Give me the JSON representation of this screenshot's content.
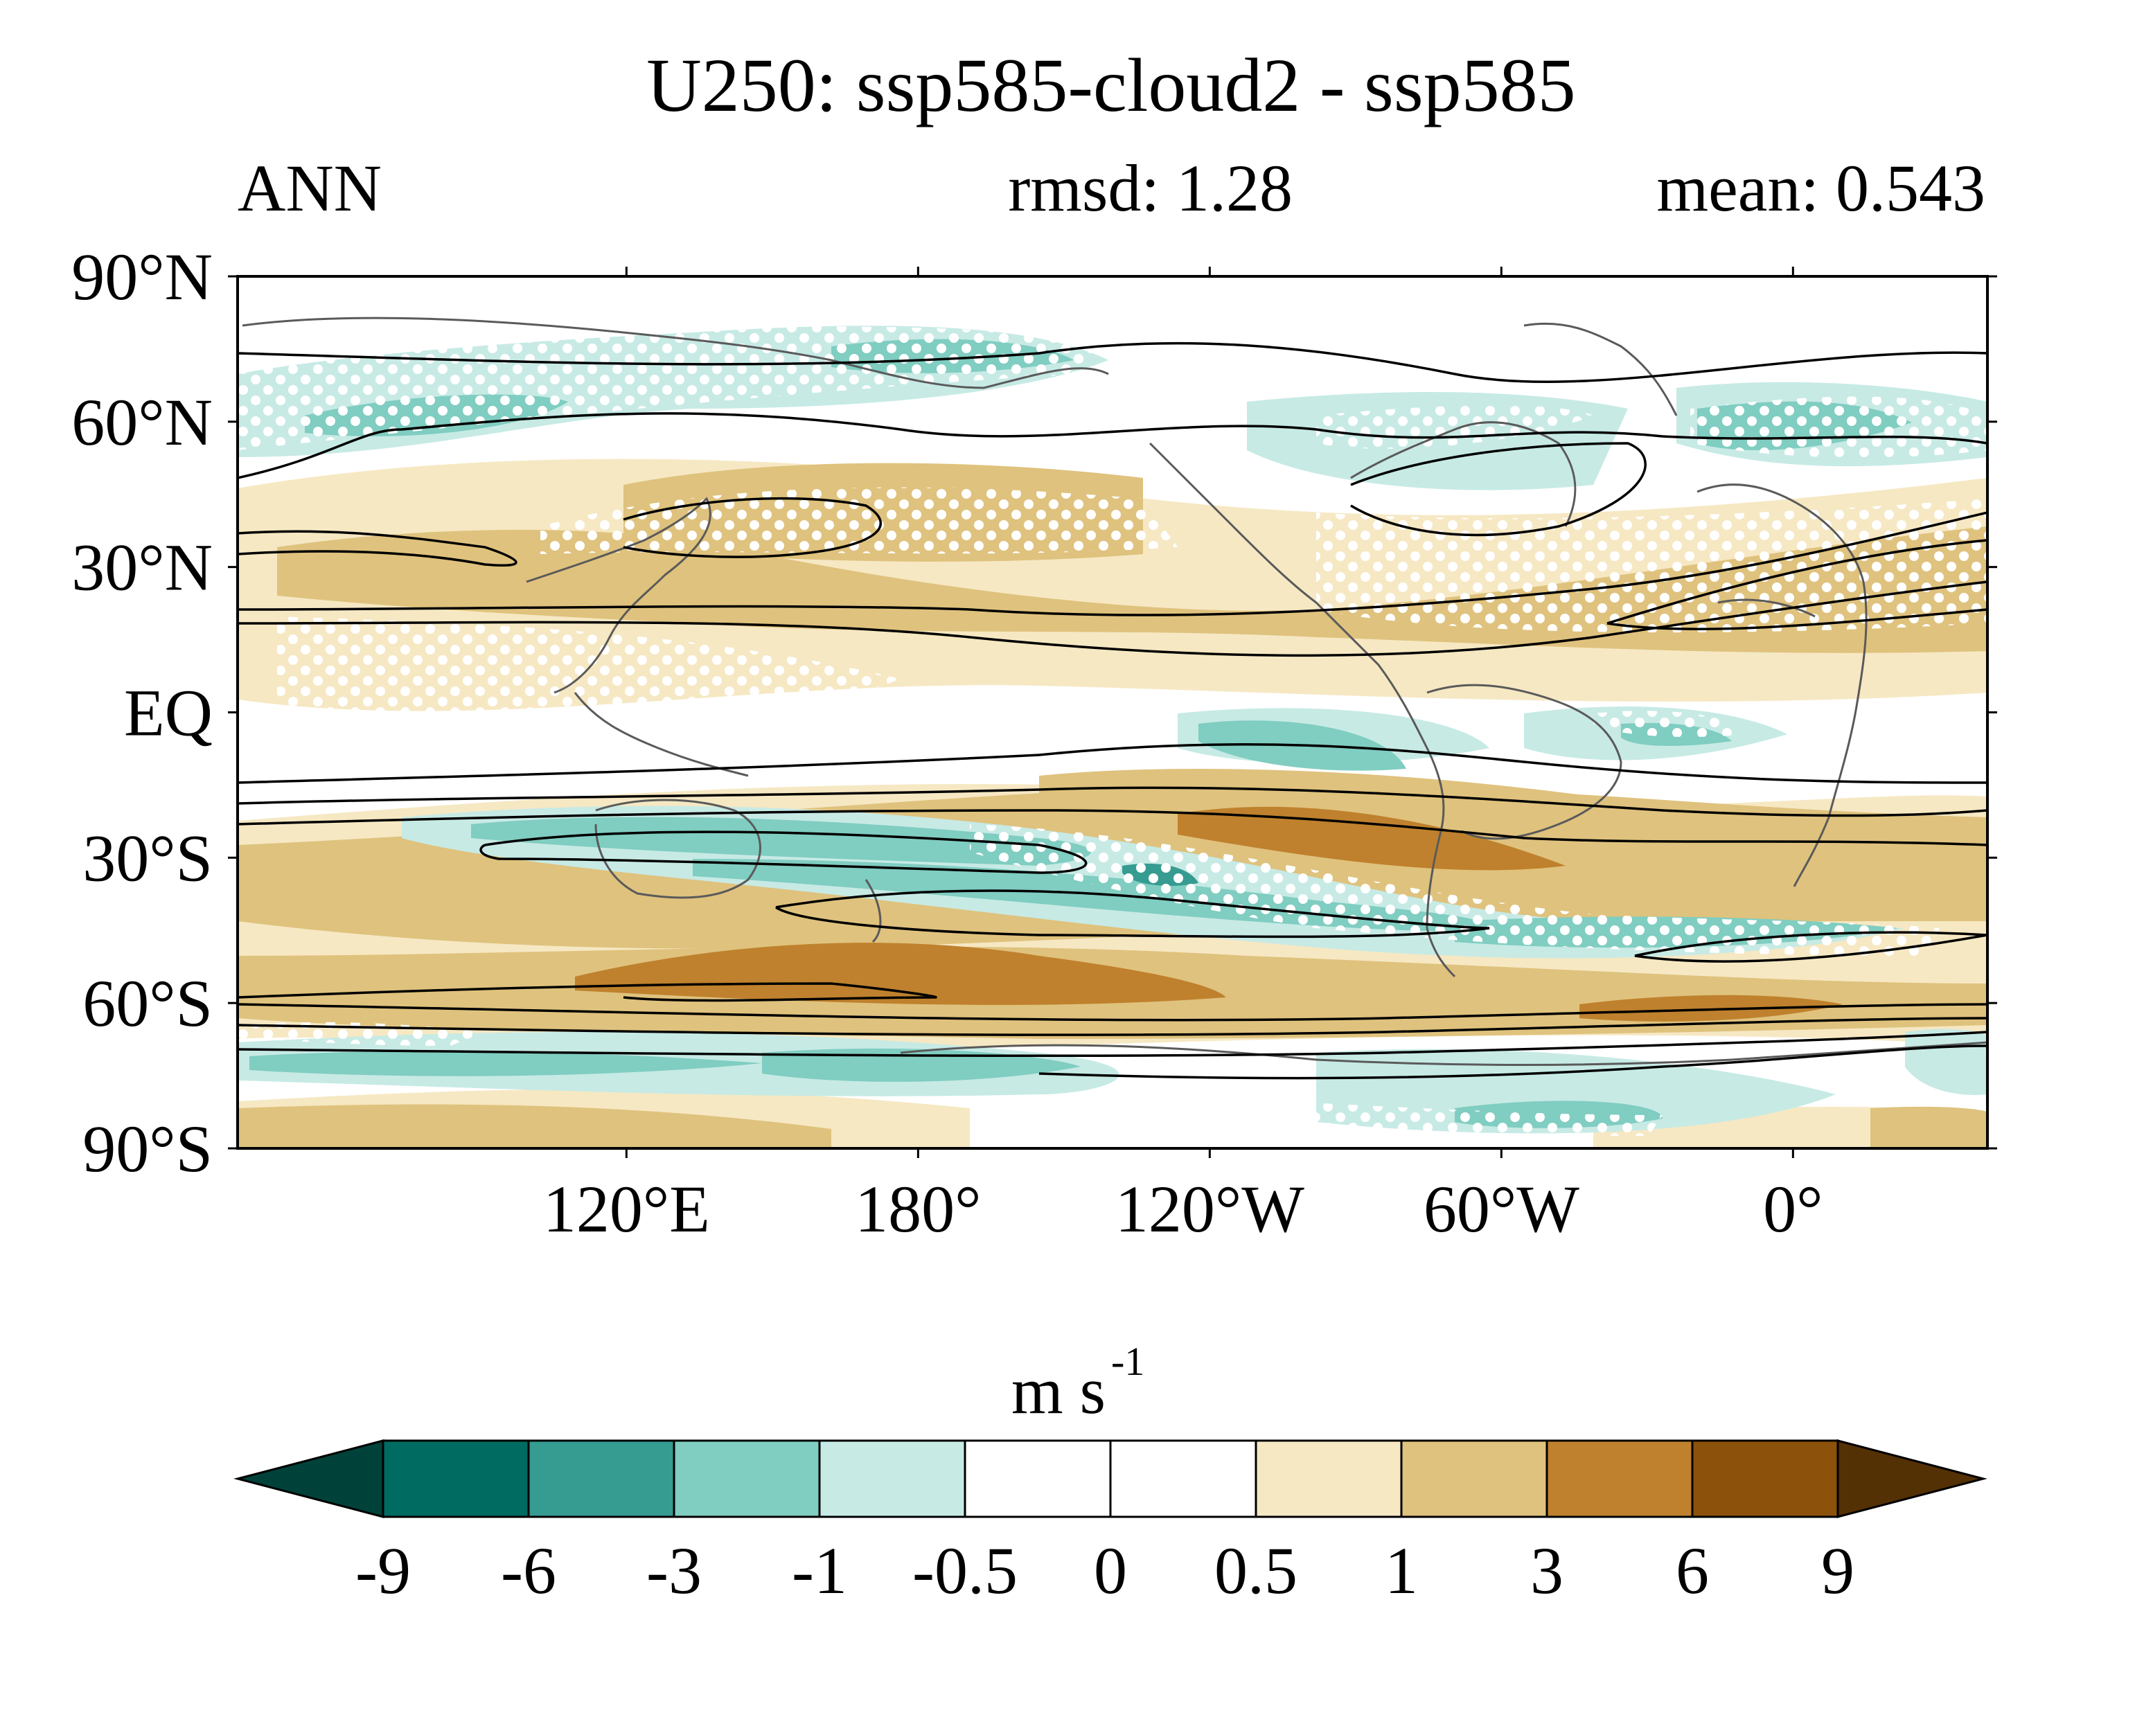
{
  "title": "U250: ssp585-cloud2 - ssp585",
  "season": "ANN",
  "stats": {
    "rmsd": "rmsd: 1.28",
    "mean": "mean: 0.543"
  },
  "map": {
    "lat_labels": [
      "90°N",
      "60°N",
      "30°N",
      "EQ",
      "30°S",
      "60°S",
      "90°S"
    ],
    "lon_labels": [
      "120°E",
      "180°",
      "120°W",
      "60°W",
      "0°"
    ],
    "central_longitude_deg": 220
  },
  "colorbar": {
    "units_base": "m s",
    "units_exp": "-1",
    "levels": [
      "-9",
      "-6",
      "-3",
      "-1",
      "-0.5",
      "0",
      "0.5",
      "1",
      "3",
      "6",
      "9"
    ],
    "colors": [
      "#00423a",
      "#006b60",
      "#369b91",
      "#80cdc1",
      "#c7eae5",
      "#ffffff",
      "#ffffff",
      "#f6e8c3",
      "#dfc27d",
      "#bf812d",
      "#8c510a",
      "#543005"
    ]
  },
  "legend_semantics": {
    "stipple": "white dots mark significant regions",
    "contours": "black contours show base-state jets"
  }
}
